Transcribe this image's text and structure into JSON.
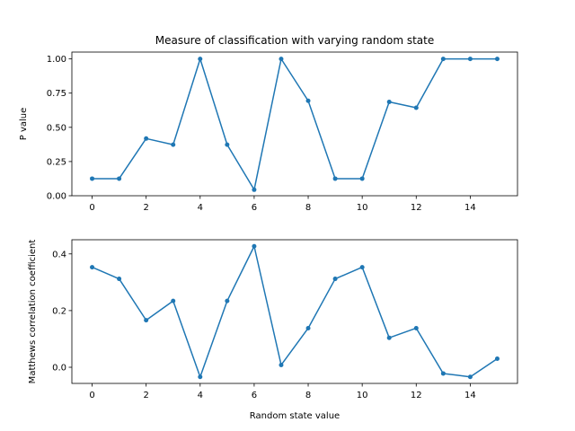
{
  "chart_data": [
    {
      "type": "line",
      "title": "Measure of classification with varying random state",
      "xlabel": "",
      "ylabel": "P value",
      "x": [
        0,
        1,
        2,
        3,
        4,
        5,
        6,
        7,
        8,
        9,
        10,
        11,
        12,
        13,
        14,
        15
      ],
      "series": [
        {
          "values": [
            0.125,
            0.125,
            0.418,
            0.373,
            1.0,
            0.373,
            0.044,
            1.0,
            0.694,
            0.125,
            0.125,
            0.686,
            0.643,
            1.0,
            1.0,
            1.0
          ]
        }
      ],
      "xlim": [
        -0.75,
        15.75
      ],
      "ylim": [
        0.0,
        1.05
      ],
      "xticks": [
        0,
        2,
        4,
        6,
        8,
        10,
        12,
        14
      ],
      "xtick_labels": [
        "0",
        "2",
        "4",
        "6",
        "8",
        "10",
        "12",
        "14"
      ],
      "yticks": [
        0.0,
        0.25,
        0.5,
        0.75,
        1.0
      ],
      "ytick_labels": [
        "0.00",
        "0.25",
        "0.50",
        "0.75",
        "1.00"
      ],
      "grid": false,
      "color": "#1f77b4"
    },
    {
      "type": "line",
      "title": "",
      "xlabel": "Random state value",
      "ylabel": "Matthews correlation coefficient",
      "x": [
        0,
        1,
        2,
        3,
        4,
        5,
        6,
        7,
        8,
        9,
        10,
        11,
        12,
        13,
        14,
        15
      ],
      "series": [
        {
          "values": [
            0.353,
            0.312,
            0.166,
            0.234,
            -0.034,
            0.234,
            0.427,
            0.008,
            0.138,
            0.312,
            0.353,
            0.104,
            0.138,
            -0.022,
            -0.034,
            0.03
          ]
        }
      ],
      "xlim": [
        -0.75,
        15.75
      ],
      "ylim": [
        -0.057,
        0.45
      ],
      "xticks": [
        0,
        2,
        4,
        6,
        8,
        10,
        12,
        14
      ],
      "xtick_labels": [
        "0",
        "2",
        "4",
        "6",
        "8",
        "10",
        "12",
        "14"
      ],
      "yticks": [
        0.0,
        0.2,
        0.4
      ],
      "ytick_labels": [
        "0.0",
        "0.2",
        "0.4"
      ],
      "grid": false,
      "color": "#1f77b4"
    }
  ]
}
